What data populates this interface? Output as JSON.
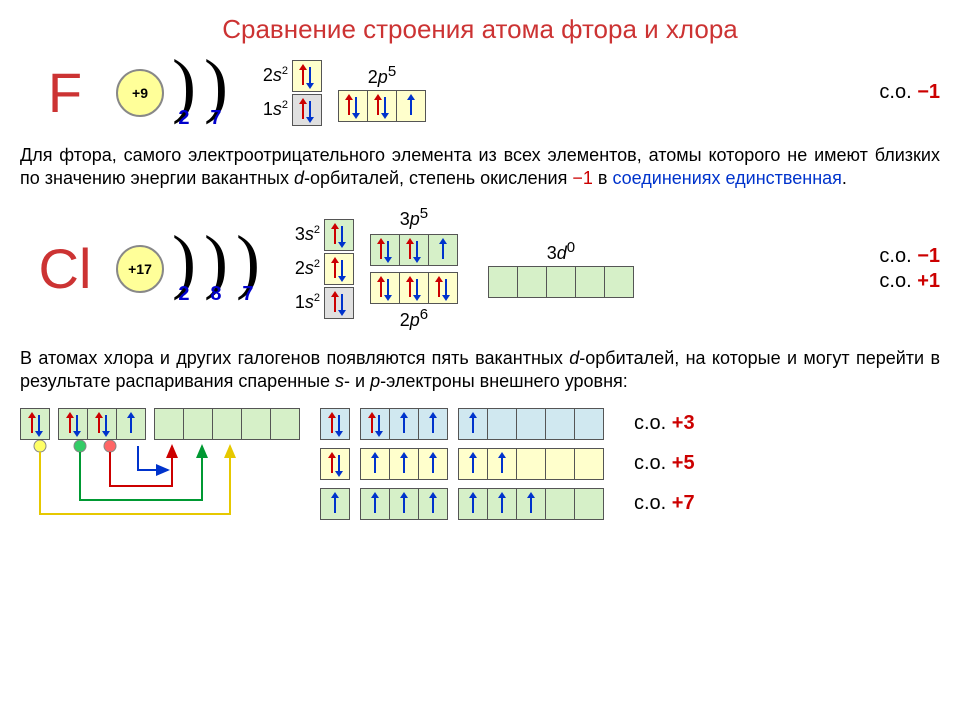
{
  "title": "Сравнение строения атома фтора и хлора",
  "colors": {
    "title": "#cc3333",
    "shell_number": "#0000cc",
    "arrow_red": "#cc0000",
    "arrow_blue": "#0033cc",
    "cell_grey": "#e0e0e0",
    "cell_yellow": "#ffffcc",
    "cell_green": "#d6f0c8",
    "cell_cyan": "#d0e8f0",
    "nucleus_fill": "#ffff99",
    "so_neg": "#cc0000",
    "so_pos": "#cc0000",
    "link_blue": "#0033cc",
    "excite_yellow": "#e6c800",
    "excite_green": "#009933",
    "excite_red": "#cc0000"
  },
  "F": {
    "symbol": "F",
    "nucleus": "+9",
    "shells": [
      "2",
      "7"
    ],
    "sublevels": [
      {
        "label": "1s",
        "exp": "2",
        "cells": [
          {
            "bg": "grey",
            "e": [
              "up-r",
              "down-b"
            ]
          }
        ]
      },
      {
        "label": "2s",
        "exp": "2",
        "cells": [
          {
            "bg": "yellow",
            "e": [
              "up-r",
              "down-b"
            ]
          }
        ]
      }
    ],
    "p_label": "2p",
    "p_exp": "5",
    "p_cells": [
      {
        "bg": "yellow",
        "e": [
          "up-r",
          "down-b"
        ]
      },
      {
        "bg": "yellow",
        "e": [
          "up-r",
          "down-b"
        ]
      },
      {
        "bg": "yellow",
        "e": [
          "up-b"
        ]
      }
    ],
    "so": [
      {
        "label": "с.о.",
        "val": "−1",
        "color": "neg"
      }
    ]
  },
  "para1_a": "Для фтора, самого электроотрицательного элемента из всех элементов, атомы которого не имеют близких по значению энергии вакантных ",
  "para1_b": "d",
  "para1_c": "-орбиталей, степень окисления ",
  "para1_d": "−1",
  "para1_e": " в ",
  "para1_f": "соединениях единственная",
  "para1_g": ".",
  "Cl": {
    "symbol": "Cl",
    "nucleus": "+17",
    "shells": [
      "2",
      "8",
      "7"
    ],
    "sublevels": [
      {
        "label": "1s",
        "exp": "2",
        "cells": [
          {
            "bg": "grey",
            "e": [
              "up-r",
              "down-b"
            ]
          }
        ]
      },
      {
        "label": "2s",
        "exp": "2",
        "cells": [
          {
            "bg": "yellow",
            "e": [
              "up-r",
              "down-b"
            ]
          }
        ]
      },
      {
        "label": "3s",
        "exp": "2",
        "cells": [
          {
            "bg": "green",
            "e": [
              "up-r",
              "down-b"
            ]
          }
        ]
      }
    ],
    "p3_label": "3p",
    "p3_exp": "5",
    "p3_cells": [
      {
        "bg": "green",
        "e": [
          "up-r",
          "down-b"
        ]
      },
      {
        "bg": "green",
        "e": [
          "up-r",
          "down-b"
        ]
      },
      {
        "bg": "green",
        "e": [
          "up-b"
        ]
      }
    ],
    "p2_label": "2p",
    "p2_exp": "6",
    "p2_cells": [
      {
        "bg": "yellow",
        "e": [
          "up-r",
          "down-b"
        ]
      },
      {
        "bg": "yellow",
        "e": [
          "up-r",
          "down-b"
        ]
      },
      {
        "bg": "yellow",
        "e": [
          "up-r",
          "down-b"
        ]
      }
    ],
    "d_label": "3d",
    "d_exp": "0",
    "d_cells": [
      {
        "bg": "green",
        "e": []
      },
      {
        "bg": "green",
        "e": []
      },
      {
        "bg": "green",
        "e": []
      },
      {
        "bg": "green",
        "e": []
      },
      {
        "bg": "green",
        "e": []
      }
    ],
    "so": [
      {
        "label": "с.о.",
        "val": "−1",
        "color": "neg"
      },
      {
        "label": "с.о.",
        "val": "+1",
        "color": "pos"
      }
    ]
  },
  "para2_a": "В атомах хлора и других галогенов появляются пять вакантных ",
  "para2_b": "d",
  "para2_c": "-орбиталей, на которые и могут перейти в результате распаривания спаренные ",
  "para2_d": "s",
  "para2_e": "- и ",
  "para2_f": "p",
  "para2_g": "-электроны внешнего уровня:",
  "excite_base": {
    "s": [
      {
        "bg": "green",
        "e": [
          "up-r",
          "down-b"
        ]
      }
    ],
    "p": [
      {
        "bg": "green",
        "e": [
          "up-r",
          "down-b"
        ]
      },
      {
        "bg": "green",
        "e": [
          "up-r",
          "down-b"
        ]
      },
      {
        "bg": "green",
        "e": [
          "up-b"
        ]
      }
    ],
    "d": [
      {
        "bg": "green",
        "e": []
      },
      {
        "bg": "green",
        "e": []
      },
      {
        "bg": "green",
        "e": []
      },
      {
        "bg": "green",
        "e": []
      },
      {
        "bg": "green",
        "e": []
      }
    ]
  },
  "states": [
    {
      "so": {
        "label": "с.о.",
        "val": "+3",
        "color": "pos"
      },
      "s": [
        {
          "bg": "cyan",
          "e": [
            "up-r",
            "down-b"
          ]
        }
      ],
      "p": [
        {
          "bg": "cyan",
          "e": [
            "up-r",
            "down-b"
          ]
        },
        {
          "bg": "cyan",
          "e": [
            "up-b"
          ]
        },
        {
          "bg": "cyan",
          "e": [
            "up-b"
          ]
        }
      ],
      "d": [
        {
          "bg": "cyan",
          "e": [
            "up-b"
          ]
        },
        {
          "bg": "cyan",
          "e": []
        },
        {
          "bg": "cyan",
          "e": []
        },
        {
          "bg": "cyan",
          "e": []
        },
        {
          "bg": "cyan",
          "e": []
        }
      ]
    },
    {
      "so": {
        "label": "с.о.",
        "val": "+5",
        "color": "pos"
      },
      "s": [
        {
          "bg": "yellow",
          "e": [
            "up-r",
            "down-b"
          ]
        }
      ],
      "p": [
        {
          "bg": "yellow",
          "e": [
            "up-b"
          ]
        },
        {
          "bg": "yellow",
          "e": [
            "up-b"
          ]
        },
        {
          "bg": "yellow",
          "e": [
            "up-b"
          ]
        }
      ],
      "d": [
        {
          "bg": "yellow",
          "e": [
            "up-b"
          ]
        },
        {
          "bg": "yellow",
          "e": [
            "up-b"
          ]
        },
        {
          "bg": "yellow",
          "e": []
        },
        {
          "bg": "yellow",
          "e": []
        },
        {
          "bg": "yellow",
          "e": []
        }
      ]
    },
    {
      "so": {
        "label": "с.о.",
        "val": "+7",
        "color": "pos"
      },
      "s": [
        {
          "bg": "green",
          "e": [
            "up-b"
          ]
        }
      ],
      "p": [
        {
          "bg": "green",
          "e": [
            "up-b"
          ]
        },
        {
          "bg": "green",
          "e": [
            "up-b"
          ]
        },
        {
          "bg": "green",
          "e": [
            "up-b"
          ]
        }
      ],
      "d": [
        {
          "bg": "green",
          "e": [
            "up-b"
          ]
        },
        {
          "bg": "green",
          "e": [
            "up-b"
          ]
        },
        {
          "bg": "green",
          "e": [
            "up-b"
          ]
        },
        {
          "bg": "green",
          "e": []
        },
        {
          "bg": "green",
          "e": []
        }
      ]
    }
  ]
}
